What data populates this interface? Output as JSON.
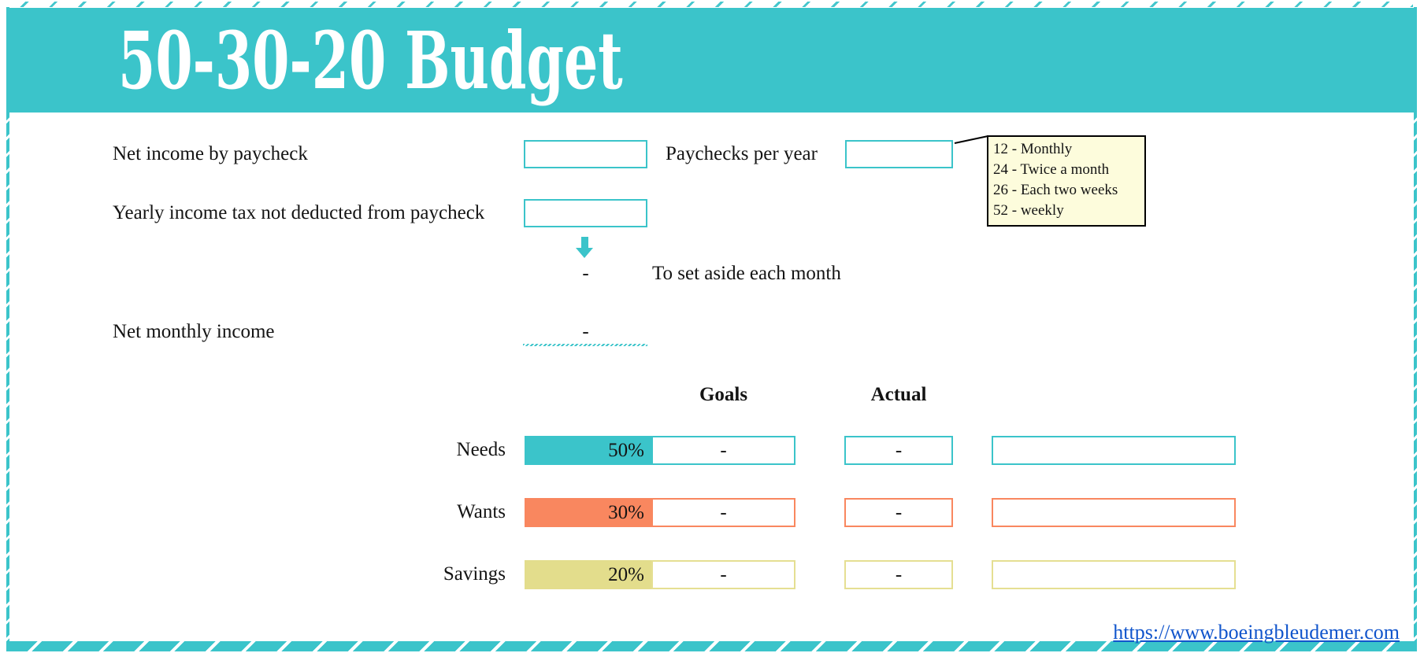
{
  "title": "50-30-20 Budget",
  "fields": {
    "net_income_label": "Net income by paycheck",
    "net_income_value": "",
    "paychecks_label": "Paychecks per year",
    "paychecks_value": "",
    "tax_label": "Yearly income tax not deducted from paycheck",
    "tax_value": "",
    "set_aside_value": "-",
    "set_aside_label": "To set aside each month",
    "net_monthly_label": "Net monthly income",
    "net_monthly_value": "-"
  },
  "comment": {
    "lines": [
      "12 - Monthly",
      "24 - Twice a month",
      "26 - Each two weeks",
      "52 - weekly"
    ]
  },
  "table": {
    "goals_header": "Goals",
    "actual_header": "Actual",
    "rows": [
      {
        "label": "Needs",
        "percent": "50%",
        "goal": "-",
        "actual": "-",
        "detail": "",
        "color": "#3bc4ca"
      },
      {
        "label": "Wants",
        "percent": "30%",
        "goal": "-",
        "actual": "-",
        "detail": "",
        "color": "#f9875f"
      },
      {
        "label": "Savings",
        "percent": "20%",
        "goal": "-",
        "actual": "-",
        "detail": "",
        "color": "#e3dd8c"
      }
    ]
  },
  "footer": {
    "link_text": "https://www.boeingbleudemer.com",
    "url": "https://www.boeingbleudemer.com"
  },
  "colors": {
    "accent_teal": "#3bc4ca",
    "accent_salmon": "#f9875f",
    "accent_khaki": "#e3dd8c",
    "comment_background": "#fdfcdc",
    "comment_border": "#000000",
    "marker_red": "#fb0207",
    "link_blue": "#1155cc",
    "banner_text": "#ffffff"
  }
}
